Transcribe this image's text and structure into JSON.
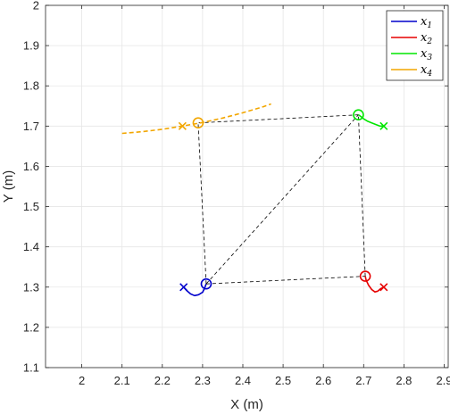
{
  "chart_data": {
    "type": "line",
    "xlabel": "X (m)",
    "ylabel": "Y (m)",
    "xlim": [
      1.91,
      2.91
    ],
    "ylim": [
      1.1,
      2.0
    ],
    "xticks": [
      "2",
      "2.1",
      "2.2",
      "2.3",
      "2.4",
      "2.5",
      "2.6",
      "2.7",
      "2.8",
      "2.9"
    ],
    "xtick_values": [
      2.0,
      2.1,
      2.2,
      2.3,
      2.4,
      2.5,
      2.6,
      2.7,
      2.8,
      2.9
    ],
    "yticks": [
      "1.1",
      "1.2",
      "1.3",
      "1.4",
      "1.5",
      "1.6",
      "1.7",
      "1.8",
      "1.9",
      "2"
    ],
    "ytick_values": [
      1.1,
      1.2,
      1.3,
      1.4,
      1.5,
      1.6,
      1.7,
      1.8,
      1.9,
      2.0
    ],
    "grid": true,
    "legend_position": "top-right",
    "series": [
      {
        "name": "x1",
        "color": "#0000cc",
        "style": "solid",
        "x": [
          2.253,
          2.26,
          2.27,
          2.28,
          2.29,
          2.3,
          2.305,
          2.309
        ],
        "y": [
          1.3,
          1.292,
          1.283,
          1.279,
          1.281,
          1.287,
          1.297,
          1.308
        ],
        "start": [
          2.253,
          1.3
        ],
        "end": [
          2.309,
          1.308
        ]
      },
      {
        "name": "x2",
        "color": "#e60000",
        "style": "solid",
        "x": [
          2.75,
          2.742,
          2.735,
          2.728,
          2.72,
          2.712,
          2.706,
          2.704
        ],
        "y": [
          1.3,
          1.296,
          1.29,
          1.288,
          1.294,
          1.305,
          1.318,
          1.327
        ],
        "start": [
          2.75,
          1.3
        ],
        "end": [
          2.704,
          1.327
        ]
      },
      {
        "name": "x3",
        "color": "#00e600",
        "style": "solid",
        "x": [
          2.75,
          2.74,
          2.73,
          2.72,
          2.71,
          2.7,
          2.693,
          2.687
        ],
        "y": [
          1.7,
          1.7,
          1.704,
          1.708,
          1.712,
          1.718,
          1.724,
          1.728
        ],
        "start": [
          2.75,
          1.7
        ],
        "end": [
          2.687,
          1.728
        ]
      },
      {
        "name": "x4",
        "color": "#f2a600",
        "style": "dashed",
        "x": [
          2.1,
          2.15,
          2.2,
          2.25,
          2.3,
          2.35,
          2.4,
          2.45,
          2.47
        ],
        "y": [
          1.682,
          1.686,
          1.692,
          1.7,
          1.709,
          1.72,
          1.733,
          1.748,
          1.755
        ],
        "start": [
          2.25,
          1.7
        ],
        "end": [
          2.289,
          1.708
        ]
      }
    ],
    "formation_edges": [
      [
        [
          2.309,
          1.308
        ],
        [
          2.704,
          1.327
        ]
      ],
      [
        [
          2.309,
          1.308
        ],
        [
          2.687,
          1.728
        ]
      ],
      [
        [
          2.309,
          1.308
        ],
        [
          2.289,
          1.708
        ]
      ],
      [
        [
          2.704,
          1.327
        ],
        [
          2.687,
          1.728
        ]
      ],
      [
        [
          2.687,
          1.728
        ],
        [
          2.289,
          1.708
        ]
      ]
    ],
    "legend": [
      {
        "base": "x",
        "sub": "1",
        "color": "#0000cc"
      },
      {
        "base": "x",
        "sub": "2",
        "color": "#e60000"
      },
      {
        "base": "x",
        "sub": "3",
        "color": "#00e600"
      },
      {
        "base": "x",
        "sub": "4",
        "color": "#f2a600"
      }
    ]
  }
}
